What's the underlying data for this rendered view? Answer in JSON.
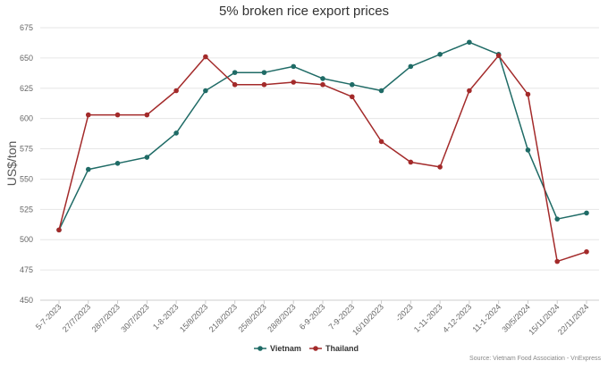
{
  "chart_data": {
    "type": "line",
    "title": "5% broken rice export prices",
    "xlabel": "",
    "ylabel": "US$/ton",
    "categories": [
      "5-7-2023",
      "27/7/2023",
      "28/7/2023",
      "30/7/2023",
      "1-8-2023",
      "15/8/2023",
      "21/8/2023",
      "25/8/2023",
      "28/8/2023",
      "6-9-2023",
      "7-9-2023",
      "16/10/2023",
      "-2023",
      "1-11-2023",
      "4-12-2023",
      "11-1-2024",
      "30/5/2024",
      "15/11/2024",
      "22/11/2024"
    ],
    "series": [
      {
        "name": "Vietnam",
        "color": "#1f6b66",
        "values": [
          508,
          558,
          563,
          568,
          588,
          623,
          638,
          638,
          643,
          633,
          628,
          623,
          643,
          653,
          663,
          653,
          574,
          517,
          522
        ]
      },
      {
        "name": "Thailand",
        "color": "#a32a2a",
        "values": [
          508,
          603,
          603,
          603,
          623,
          651,
          628,
          628,
          630,
          628,
          618,
          581,
          564,
          560,
          623,
          652,
          620,
          482,
          490
        ]
      }
    ],
    "ylim": [
      450,
      675
    ],
    "yticks": [
      450,
      475,
      500,
      525,
      550,
      575,
      600,
      625,
      650,
      675
    ],
    "grid": true,
    "legend_position": "bottom-center",
    "source": "Source: Vietnam Food Association - VnExpress"
  }
}
